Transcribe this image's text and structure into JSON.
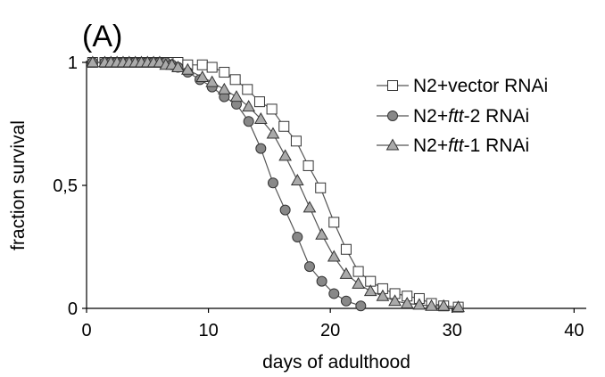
{
  "panel_label": "(A)",
  "chart_data": {
    "type": "line",
    "xlabel": "days of adulthood",
    "ylabel": "fraction survival",
    "xlim": [
      0,
      41
    ],
    "ylim": [
      0,
      1
    ],
    "x_ticks": [
      0,
      10,
      20,
      30,
      40
    ],
    "y_ticks": [
      0,
      0.5,
      1
    ],
    "x_tick_labels": [
      "0",
      "10",
      "20",
      "30",
      "40"
    ],
    "y_tick_labels": [
      "0",
      "0,5",
      "1"
    ],
    "grid": false,
    "legend_position": "top-right",
    "series": [
      {
        "name_prefix": "N2+vector RNAi",
        "name_italic": "",
        "name_suffix": "",
        "marker": "square",
        "marker_fill": "#ffffff",
        "points": [
          [
            0.5,
            1
          ],
          [
            1.5,
            1
          ],
          [
            2,
            1
          ],
          [
            2.5,
            1
          ],
          [
            3,
            1
          ],
          [
            3.5,
            1
          ],
          [
            4,
            1
          ],
          [
            4.5,
            1
          ],
          [
            5,
            1
          ],
          [
            5.5,
            1
          ],
          [
            6,
            1
          ],
          [
            6.5,
            1
          ],
          [
            7,
            1
          ],
          [
            7.5,
            1
          ],
          [
            8.3,
            0.99
          ],
          [
            9.5,
            0.99
          ],
          [
            10.3,
            0.98
          ],
          [
            11.3,
            0.96
          ],
          [
            12.2,
            0.93
          ],
          [
            13.2,
            0.89
          ],
          [
            14.2,
            0.84
          ],
          [
            15.2,
            0.81
          ],
          [
            16.2,
            0.74
          ],
          [
            17.2,
            0.68
          ],
          [
            18.2,
            0.58
          ],
          [
            19.2,
            0.49
          ],
          [
            20.3,
            0.35
          ],
          [
            21.3,
            0.24
          ],
          [
            22.3,
            0.15
          ],
          [
            23.3,
            0.11
          ],
          [
            24.3,
            0.08
          ],
          [
            25.3,
            0.06
          ],
          [
            26.3,
            0.05
          ],
          [
            27.3,
            0.04
          ],
          [
            28.3,
            0.02
          ],
          [
            29.3,
            0.01
          ],
          [
            30.5,
            0.005
          ]
        ]
      },
      {
        "name_prefix": "N2+",
        "name_italic": "ftt",
        "name_suffix": "-2 RNAi",
        "marker": "circle",
        "marker_fill": "#888888",
        "points": [
          [
            0.5,
            1
          ],
          [
            1.5,
            1
          ],
          [
            2,
            1
          ],
          [
            2.5,
            1
          ],
          [
            3,
            1
          ],
          [
            3.5,
            1
          ],
          [
            4,
            1
          ],
          [
            4.5,
            1
          ],
          [
            5,
            1
          ],
          [
            5.5,
            1
          ],
          [
            6,
            1
          ],
          [
            6.5,
            1
          ],
          [
            7,
            0.99
          ],
          [
            7.5,
            0.98
          ],
          [
            8.3,
            0.96
          ],
          [
            9.3,
            0.93
          ],
          [
            10.3,
            0.9
          ],
          [
            11.3,
            0.86
          ],
          [
            12.3,
            0.83
          ],
          [
            13.3,
            0.76
          ],
          [
            14.3,
            0.65
          ],
          [
            15.3,
            0.51
          ],
          [
            16.3,
            0.4
          ],
          [
            17.3,
            0.29
          ],
          [
            18.3,
            0.17
          ],
          [
            19.3,
            0.11
          ],
          [
            20.3,
            0.06
          ],
          [
            21.3,
            0.03
          ],
          [
            22.5,
            0.01
          ]
        ]
      },
      {
        "name_prefix": "N2+",
        "name_italic": "ftt",
        "name_suffix": "-1 RNAi",
        "marker": "triangle",
        "marker_fill": "#aaaaaa",
        "points": [
          [
            0.5,
            1
          ],
          [
            1.5,
            1
          ],
          [
            2,
            1
          ],
          [
            2.5,
            1
          ],
          [
            3,
            1
          ],
          [
            3.5,
            1
          ],
          [
            4,
            1
          ],
          [
            4.5,
            1
          ],
          [
            5,
            1
          ],
          [
            5.5,
            1
          ],
          [
            6,
            1
          ],
          [
            6.5,
            0.99
          ],
          [
            7,
            0.99
          ],
          [
            7.5,
            0.98
          ],
          [
            8.3,
            0.97
          ],
          [
            9.5,
            0.94
          ],
          [
            10.3,
            0.92
          ],
          [
            11.3,
            0.89
          ],
          [
            12.3,
            0.86
          ],
          [
            13.3,
            0.82
          ],
          [
            14.3,
            0.77
          ],
          [
            15.3,
            0.71
          ],
          [
            16.3,
            0.62
          ],
          [
            17.3,
            0.52
          ],
          [
            18.3,
            0.41
          ],
          [
            19.3,
            0.3
          ],
          [
            20.3,
            0.21
          ],
          [
            21.3,
            0.14
          ],
          [
            22.3,
            0.1
          ],
          [
            23.3,
            0.07
          ],
          [
            24.3,
            0.05
          ],
          [
            25.3,
            0.03
          ],
          [
            26.3,
            0.02
          ],
          [
            27.3,
            0.015
          ],
          [
            28.3,
            0.01
          ],
          [
            29.3,
            0.01
          ],
          [
            30.5,
            0.005
          ]
        ]
      }
    ]
  }
}
